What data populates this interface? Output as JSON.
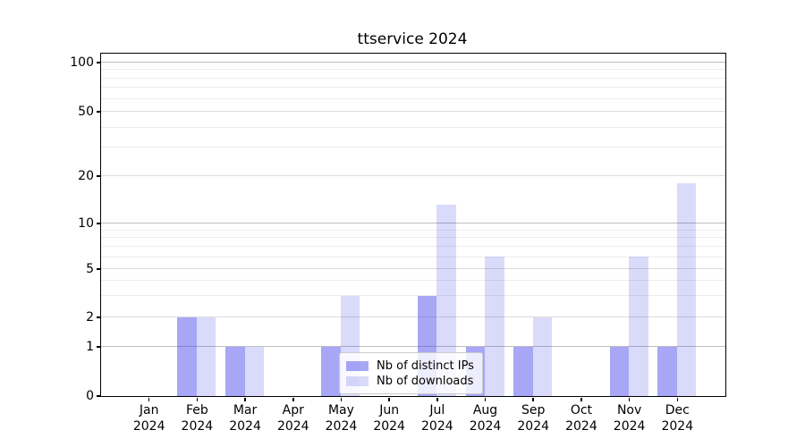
{
  "title": "ttservice 2024",
  "chart_data": {
    "type": "bar",
    "title": "ttservice 2024",
    "categories": [
      "Jan",
      "Feb",
      "Mar",
      "Apr",
      "May",
      "Jun",
      "Jul",
      "Aug",
      "Sep",
      "Oct",
      "Nov",
      "Dec"
    ],
    "year_label": "2024",
    "series": [
      {
        "name": "Nb of distinct IPs",
        "color": "rgba(60,60,235,0.45)",
        "values": [
          0,
          2,
          1,
          0,
          1,
          0,
          3,
          1,
          1,
          0,
          1,
          1
        ]
      },
      {
        "name": "Nb of downloads",
        "color": "rgba(60,60,235,0.19)",
        "values": [
          0,
          2,
          1,
          0,
          3,
          0,
          13,
          6,
          2,
          0,
          6,
          18
        ]
      }
    ],
    "y_ticks": [
      0,
      1,
      2,
      5,
      10,
      20,
      50,
      100
    ],
    "minor_gridlines": [
      3,
      4,
      6,
      7,
      8,
      9,
      30,
      40,
      60,
      70,
      80,
      90
    ],
    "decade_gridlines": [
      1,
      10,
      100
    ],
    "y_scale": "log-like (compressed below 10)",
    "ylim": [
      0,
      110
    ],
    "grid": true,
    "legend_position": "bottom-center-inside",
    "colors": {
      "bar_distinct_ips": "rgba(60,60,235,0.45)",
      "bar_downloads": "rgba(60,60,235,0.19)",
      "grid_decade": "#bdbdbd",
      "grid_labeled": "#dcdcdc",
      "grid_minor": "#ececec",
      "spine": "#000000"
    }
  }
}
